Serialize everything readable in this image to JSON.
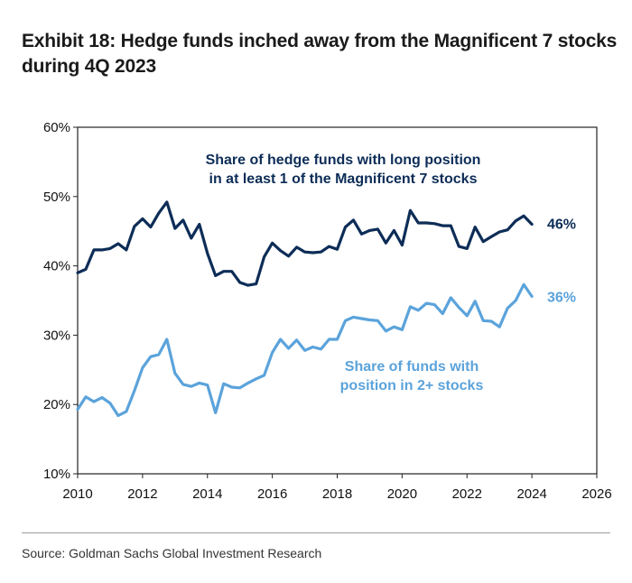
{
  "title": "Exhibit 18: Hedge funds inched away from the Magnificent 7 stocks during 4Q 2023",
  "source": "Source: Goldman Sachs Global Investment Research",
  "chart_data": {
    "type": "line",
    "xlim": [
      2010,
      2026
    ],
    "ylim": [
      10,
      60
    ],
    "x_ticks": [
      "2010",
      "2012",
      "2014",
      "2016",
      "2018",
      "2020",
      "2022",
      "2024",
      "2026"
    ],
    "y_ticks": [
      "10%",
      "20%",
      "30%",
      "40%",
      "50%",
      "60%"
    ],
    "grid": false,
    "colors": {
      "series1": "#0d2d57",
      "series2": "#5ba3db"
    },
    "series": [
      {
        "name": "Share of hedge funds with long position in at least 1 of the Magnificent 7 stocks",
        "label_lines": [
          "Share of hedge funds with long position",
          "in at least 1 of the Magnificent 7 stocks"
        ],
        "end_label": "46%",
        "x": [
          2010.0,
          2010.25,
          2010.5,
          2010.75,
          2011.0,
          2011.25,
          2011.5,
          2011.75,
          2012.0,
          2012.25,
          2012.5,
          2012.75,
          2013.0,
          2013.25,
          2013.5,
          2013.75,
          2014.0,
          2014.25,
          2014.5,
          2014.75,
          2015.0,
          2015.25,
          2015.5,
          2015.75,
          2016.0,
          2016.25,
          2016.5,
          2016.75,
          2017.0,
          2017.25,
          2017.5,
          2017.75,
          2018.0,
          2018.25,
          2018.5,
          2018.75,
          2019.0,
          2019.25,
          2019.5,
          2019.75,
          2020.0,
          2020.25,
          2020.5,
          2020.75,
          2021.0,
          2021.25,
          2021.5,
          2021.75,
          2022.0,
          2022.25,
          2022.5,
          2022.75,
          2023.0,
          2023.25,
          2023.5,
          2023.75,
          2024.0
        ],
        "values": [
          39.0,
          39.5,
          42.3,
          42.3,
          42.5,
          43.2,
          42.3,
          45.7,
          46.8,
          45.6,
          47.6,
          49.2,
          45.4,
          46.6,
          44.0,
          46.0,
          41.8,
          38.6,
          39.2,
          39.2,
          37.6,
          37.2,
          37.4,
          41.3,
          43.3,
          42.2,
          41.4,
          42.7,
          42.0,
          41.9,
          42.0,
          42.8,
          42.4,
          45.6,
          46.6,
          44.6,
          45.1,
          45.3,
          43.3,
          45.1,
          43.0,
          48.0,
          46.2,
          46.2,
          46.1,
          45.8,
          45.8,
          42.8,
          42.5,
          45.6,
          43.5,
          44.2,
          44.9,
          45.2,
          46.5,
          47.2,
          46.0
        ]
      },
      {
        "name": "Share of funds with position in 2+ stocks",
        "label_lines": [
          "Share of funds with",
          "position in 2+ stocks"
        ],
        "end_label": "36%",
        "x": [
          2010.0,
          2010.25,
          2010.5,
          2010.75,
          2011.0,
          2011.25,
          2011.5,
          2011.75,
          2012.0,
          2012.25,
          2012.5,
          2012.75,
          2013.0,
          2013.25,
          2013.5,
          2013.75,
          2014.0,
          2014.25,
          2014.5,
          2014.75,
          2015.0,
          2015.25,
          2015.5,
          2015.75,
          2016.0,
          2016.25,
          2016.5,
          2016.75,
          2017.0,
          2017.25,
          2017.5,
          2017.75,
          2018.0,
          2018.25,
          2018.5,
          2018.75,
          2019.0,
          2019.25,
          2019.5,
          2019.75,
          2020.0,
          2020.25,
          2020.5,
          2020.75,
          2021.0,
          2021.25,
          2021.5,
          2021.75,
          2022.0,
          2022.25,
          2022.5,
          2022.75,
          2023.0,
          2023.25,
          2023.5,
          2023.75,
          2024.0
        ],
        "values": [
          19.3,
          21.1,
          20.4,
          21.0,
          20.2,
          18.4,
          19.0,
          22.0,
          25.3,
          26.9,
          27.2,
          29.4,
          24.5,
          22.9,
          22.6,
          23.1,
          22.8,
          18.8,
          23.0,
          22.5,
          22.4,
          23.1,
          23.7,
          24.2,
          27.5,
          29.4,
          28.1,
          29.3,
          27.8,
          28.3,
          28.0,
          29.4,
          29.4,
          32.1,
          32.6,
          32.4,
          32.2,
          32.1,
          30.6,
          31.2,
          30.8,
          34.1,
          33.6,
          34.6,
          34.4,
          33.1,
          35.4,
          34.0,
          32.8,
          34.9,
          32.1,
          32.0,
          31.2,
          33.9,
          35.0,
          37.3,
          35.6
        ]
      }
    ]
  }
}
